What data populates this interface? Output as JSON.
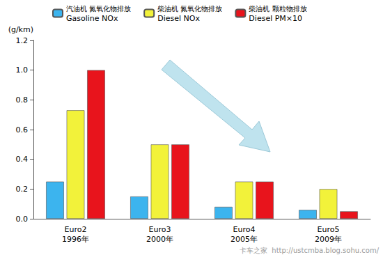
{
  "chart_data": {
    "type": "bar",
    "y_label": "(g/km)",
    "categories": [
      "Euro2\n1996年",
      "Euro3\n2000年",
      "Euro4\n2005年",
      "Euro5\n2009年"
    ],
    "series": [
      {
        "name": "Gasoline NOx",
        "color": "#3cb4ee",
        "values": [
          0.25,
          0.15,
          0.08,
          0.06
        ]
      },
      {
        "name": "Diesel NOx",
        "color": "#f2f23a",
        "values": [
          0.73,
          0.5,
          0.25,
          0.2
        ]
      },
      {
        "name": "Diesel PM×10",
        "color": "#e8141c",
        "values": [
          1.0,
          0.5,
          0.25,
          0.05
        ]
      }
    ],
    "ylim": [
      0,
      1.2
    ],
    "yticks": [
      {
        "value": 0,
        "label": "0.0"
      },
      0.2,
      0.4,
      0.6,
      0.8,
      {
        "value": 1,
        "label": "1.0"
      },
      1.2
    ],
    "grid": false,
    "legend": "top",
    "annotations": [
      {
        "series": "Gasoline NOx",
        "text": "汽油机 氮氧化物排放"
      },
      {
        "series": "Diesel NOx",
        "text": "柴油机 氮氧化物排放"
      },
      {
        "series": "Diesel PM×10",
        "text": "柴油机 颗粒物排放"
      },
      {
        "text": "卡车之家"
      },
      {
        "text": "http://ustcmba.blog.sohu.com/"
      }
    ]
  }
}
